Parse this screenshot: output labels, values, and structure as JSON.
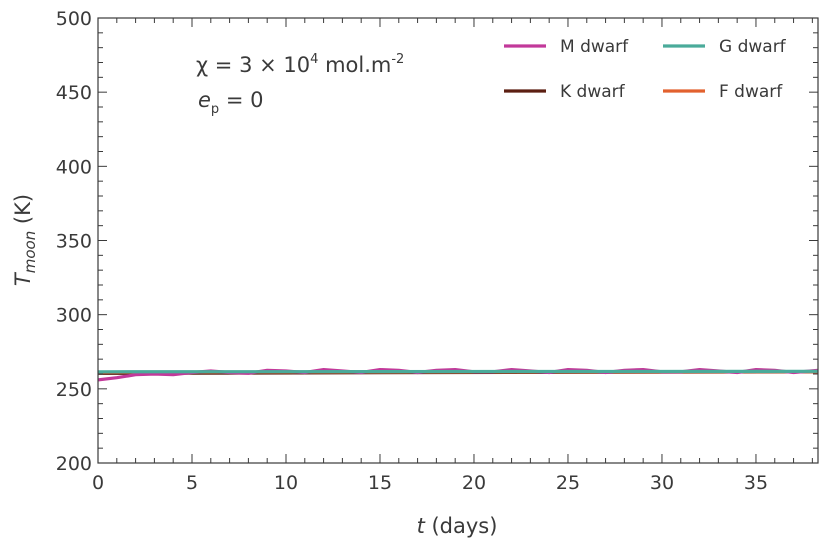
{
  "chart_data": {
    "type": "line",
    "xlabel_var": "t",
    "xlabel_unit": "(days)",
    "ylabel_var": "T",
    "ylabel_sub": "moon",
    "ylabel_unit": "(K)",
    "xlim": [
      0,
      38.3
    ],
    "ylim": [
      200,
      500
    ],
    "xticks": [
      0,
      5,
      10,
      15,
      20,
      25,
      30,
      35
    ],
    "yticks": [
      200,
      250,
      300,
      350,
      400,
      450,
      500
    ],
    "x_minor_step": 1,
    "y_minor_step": 10,
    "grid": false,
    "legend_position": "top-right",
    "annotations": {
      "line1_prefix": "χ = 3 × 10",
      "line1_exp": "4",
      "line1_unit": " mol.m",
      "line1_unit_exp": "-2",
      "line2_var": "e",
      "line2_sub": "p",
      "line2_rest": " = 0"
    },
    "series": [
      {
        "name": "M dwarf",
        "color": "#c2399a",
        "x": [
          0,
          1,
          2,
          3,
          4,
          5,
          6,
          7,
          8,
          9,
          10,
          11,
          12,
          13,
          14,
          15,
          16,
          17,
          18,
          19,
          20,
          21,
          22,
          23,
          24,
          25,
          26,
          27,
          28,
          29,
          30,
          31,
          32,
          33,
          34,
          35,
          36,
          37,
          38.3
        ],
        "y": [
          256,
          257.5,
          259.5,
          260,
          259.5,
          261,
          262,
          261,
          260.5,
          262.5,
          262,
          261,
          263,
          262,
          261,
          263,
          262.5,
          261,
          262.5,
          263,
          261.5,
          261.5,
          263,
          262,
          261,
          263,
          262.5,
          261,
          262.5,
          263,
          261.5,
          261.5,
          263,
          262,
          261,
          263,
          262.5,
          261,
          262.5
        ]
      },
      {
        "name": "K dwarf",
        "color": "#5c1f12",
        "x": [
          0,
          38.3
        ],
        "y": [
          260.5,
          261.5
        ]
      },
      {
        "name": "G dwarf",
        "color": "#4aab9a",
        "x": [
          0,
          38.3
        ],
        "y": [
          261.5,
          261.8
        ]
      },
      {
        "name": "F dwarf",
        "color": "#e2612e",
        "x": [
          0,
          38.3
        ],
        "y": [
          261.2,
          261.6
        ]
      }
    ],
    "legend_order": [
      "M dwarf",
      "G dwarf",
      "K dwarf",
      "F dwarf"
    ]
  }
}
